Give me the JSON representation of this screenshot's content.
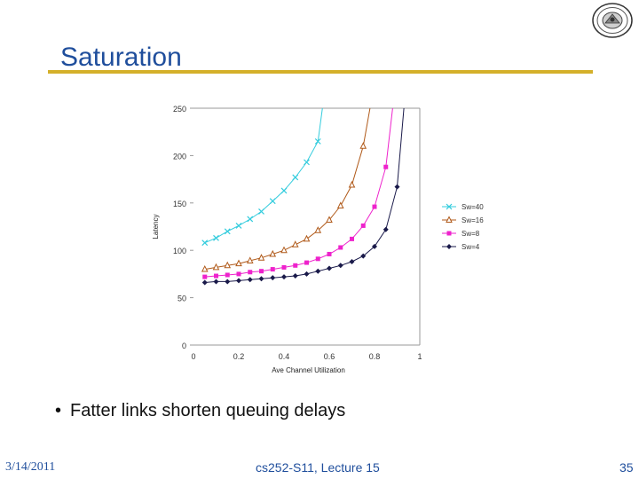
{
  "slide": {
    "title": "Saturation",
    "bullet_marker": "•",
    "bullet": "Fatter links shorten queuing delays",
    "footer_date": "3/14/2011",
    "footer_center": "cs252-S11, Lecture 15",
    "footer_page": "35",
    "accent_color": "#1f4e9c",
    "rule_color": "#d4b02a"
  },
  "chart_data": {
    "type": "line",
    "title": "",
    "xlabel": "Ave Channel Utilization",
    "ylabel": "Latency",
    "xlim": [
      0,
      1
    ],
    "ylim": [
      0,
      250
    ],
    "xticks": [
      "0",
      "0.2",
      "0.4",
      "0.6",
      "0.8",
      "1"
    ],
    "xtick_values": [
      0,
      0.2,
      0.4,
      0.6,
      0.8,
      1
    ],
    "yticks": [
      "0",
      "50",
      "100",
      "150",
      "200",
      "250"
    ],
    "ytick_values": [
      0,
      50,
      100,
      150,
      200,
      250
    ],
    "legend_position": "right",
    "grid": false,
    "series": [
      {
        "name": "Sw=40",
        "color": "#33ccdd",
        "marker": "x",
        "x": [
          0.05,
          0.1,
          0.15,
          0.2,
          0.25,
          0.3,
          0.35,
          0.4,
          0.45,
          0.5,
          0.55
        ],
        "y": [
          108,
          113,
          120,
          126,
          133,
          141,
          152,
          163,
          177,
          193,
          215
        ],
        "curve_x": [
          0.05,
          0.1,
          0.15,
          0.2,
          0.25,
          0.3,
          0.35,
          0.4,
          0.45,
          0.5,
          0.55,
          0.57
        ],
        "curve_y": [
          108,
          113,
          120,
          126,
          133,
          141,
          152,
          163,
          177,
          193,
          215,
          250
        ]
      },
      {
        "name": "Sw=16",
        "color": "#b05a1a",
        "marker": "triangle",
        "x": [
          0.05,
          0.1,
          0.15,
          0.2,
          0.25,
          0.3,
          0.35,
          0.4,
          0.45,
          0.5,
          0.55,
          0.6,
          0.65,
          0.7,
          0.75
        ],
        "y": [
          80,
          82,
          84,
          86,
          89,
          92,
          96,
          100,
          106,
          112,
          121,
          132,
          147,
          169,
          210
        ],
        "curve_x": [
          0.05,
          0.1,
          0.15,
          0.2,
          0.25,
          0.3,
          0.35,
          0.4,
          0.45,
          0.5,
          0.55,
          0.6,
          0.65,
          0.7,
          0.75,
          0.78
        ],
        "curve_y": [
          80,
          82,
          84,
          86,
          89,
          92,
          96,
          100,
          106,
          112,
          121,
          132,
          147,
          169,
          210,
          250
        ]
      },
      {
        "name": "Sw=8",
        "color": "#ee22cc",
        "marker": "square",
        "x": [
          0.05,
          0.1,
          0.15,
          0.2,
          0.25,
          0.3,
          0.35,
          0.4,
          0.45,
          0.5,
          0.55,
          0.6,
          0.65,
          0.7,
          0.75,
          0.8,
          0.85
        ],
        "y": [
          72,
          73,
          74,
          75,
          77,
          78,
          80,
          82,
          84,
          87,
          91,
          96,
          103,
          112,
          126,
          146,
          188
        ],
        "curve_x": [
          0.05,
          0.1,
          0.15,
          0.2,
          0.25,
          0.3,
          0.35,
          0.4,
          0.45,
          0.5,
          0.55,
          0.6,
          0.65,
          0.7,
          0.75,
          0.8,
          0.85,
          0.88
        ],
        "curve_y": [
          72,
          73,
          74,
          75,
          77,
          78,
          80,
          82,
          84,
          87,
          91,
          96,
          103,
          112,
          126,
          146,
          188,
          250
        ]
      },
      {
        "name": "Sw=4",
        "color": "#1a1a4a",
        "marker": "diamond",
        "x": [
          0.05,
          0.1,
          0.15,
          0.2,
          0.25,
          0.3,
          0.35,
          0.4,
          0.45,
          0.5,
          0.55,
          0.6,
          0.65,
          0.7,
          0.75,
          0.8,
          0.85,
          0.9
        ],
        "y": [
          66,
          67,
          67,
          68,
          69,
          70,
          71,
          72,
          73,
          75,
          78,
          81,
          84,
          88,
          94,
          104,
          122,
          167
        ],
        "curve_x": [
          0.05,
          0.1,
          0.15,
          0.2,
          0.25,
          0.3,
          0.35,
          0.4,
          0.45,
          0.5,
          0.55,
          0.6,
          0.65,
          0.7,
          0.75,
          0.8,
          0.85,
          0.9,
          0.93
        ],
        "curve_y": [
          66,
          67,
          67,
          68,
          69,
          70,
          71,
          72,
          73,
          75,
          78,
          81,
          84,
          88,
          94,
          104,
          122,
          167,
          250
        ]
      }
    ]
  }
}
